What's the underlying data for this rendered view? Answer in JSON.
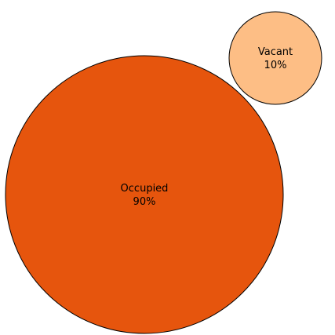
{
  "chart_data": {
    "type": "bubble",
    "title": "",
    "series": [
      {
        "label": "Occupied",
        "value": 90,
        "display": "90%",
        "color": "#e6550d"
      },
      {
        "label": "Vacant",
        "value": 10,
        "display": "10%",
        "color": "#fdbe85"
      }
    ],
    "stroke_color": "#000000"
  }
}
